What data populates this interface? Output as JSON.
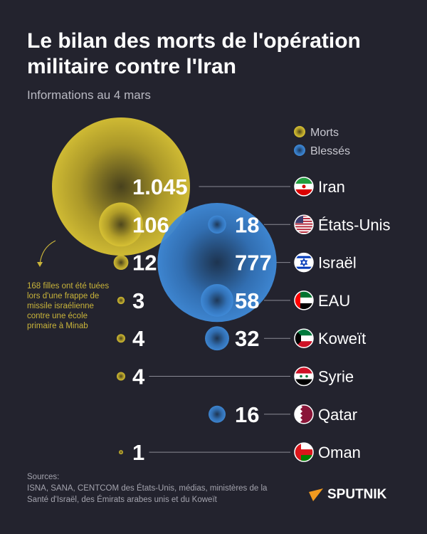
{
  "title": "Le bilan des morts de l'opération militaire contre l'Iran",
  "subtitle": "Informations au 4 mars",
  "note": "168 filles ont été tuées lors d'une frappe de missile israélienne contre une école primaire à Minab",
  "sources_label": "Sources:",
  "sources_text": "ISNA, SANA, CENTCOM des États-Unis, médias, ministères de la Santé d'Israël, des Émirats arabes unis et du Koweït",
  "logo": "SPUTNIK",
  "chart_data": {
    "type": "bubble",
    "legend": [
      {
        "name": "Morts",
        "color": "#cdb82e"
      },
      {
        "name": "Blessés",
        "color": "#3d86d3"
      }
    ],
    "legend_placement": "top-right",
    "categories": [
      "Iran",
      "États-Unis",
      "Israël",
      "EAU",
      "Koweït",
      "Syrie",
      "Qatar",
      "Oman"
    ],
    "series": [
      {
        "name": "Morts",
        "values": [
          1045,
          106,
          12,
          3,
          4,
          4,
          null,
          1
        ],
        "labels": [
          "1.045",
          "106",
          "12",
          "3",
          "4",
          "4",
          "",
          "1"
        ]
      },
      {
        "name": "Blessés",
        "values": [
          null,
          18,
          777,
          58,
          32,
          null,
          16,
          null
        ],
        "labels": [
          "",
          "18",
          "777",
          "58",
          "32",
          "",
          "16",
          ""
        ]
      }
    ]
  }
}
